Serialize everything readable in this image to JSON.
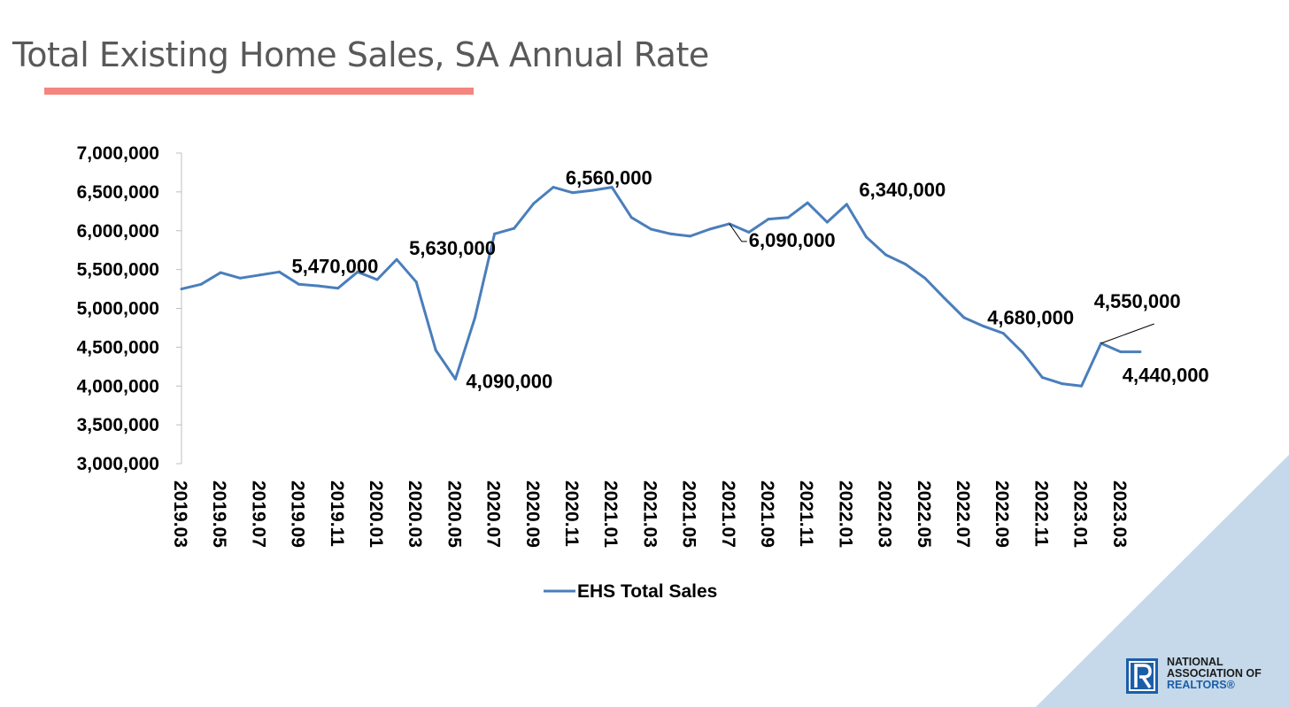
{
  "slide": {
    "title": "Total Existing Home Sales, SA Annual Rate",
    "accent_color": "#f4857f",
    "corner_color": "#c5d9ea"
  },
  "logo": {
    "icon": "realtor-r-icon",
    "line1": "NATIONAL",
    "line2": "ASSOCIATION OF",
    "line3": "REALTORS®",
    "color": "#1b5ea8"
  },
  "chart_data": {
    "type": "line",
    "title": "",
    "xlabel": "",
    "ylabel": "",
    "ylim": [
      3000000,
      7000000
    ],
    "y_ticks": [
      3000000,
      3500000,
      4000000,
      4500000,
      5000000,
      5500000,
      6000000,
      6500000,
      7000000
    ],
    "y_tick_labels": [
      "3,000,000",
      "3,500,000",
      "4,000,000",
      "4,500,000",
      "5,000,000",
      "5,500,000",
      "6,000,000",
      "6,500,000",
      "7,000,000"
    ],
    "x_tick_labels": [
      "2019.03",
      "2019.05",
      "2019.07",
      "2019.09",
      "2019.11",
      "2020.01",
      "2020.03",
      "2020.05",
      "2020.07",
      "2020.09",
      "2020.11",
      "2021.01",
      "2021.03",
      "2021.05",
      "2021.07",
      "2021.09",
      "2021.11",
      "2022.01",
      "2022.03",
      "2022.05",
      "2022.07",
      "2022.09",
      "2022.11",
      "2023.01",
      "2023.03"
    ],
    "categories": [
      "2019.03",
      "2019.04",
      "2019.05",
      "2019.06",
      "2019.07",
      "2019.08",
      "2019.09",
      "2019.10",
      "2019.11",
      "2019.12",
      "2020.01",
      "2020.02",
      "2020.03",
      "2020.04",
      "2020.05",
      "2020.06",
      "2020.07",
      "2020.08",
      "2020.09",
      "2020.10",
      "2020.11",
      "2020.12",
      "2021.01",
      "2021.02",
      "2021.03",
      "2021.04",
      "2021.05",
      "2021.06",
      "2021.07",
      "2021.08",
      "2021.09",
      "2021.10",
      "2021.11",
      "2021.12",
      "2022.01",
      "2022.02",
      "2022.03",
      "2022.04",
      "2022.05",
      "2022.06",
      "2022.07",
      "2022.08",
      "2022.09",
      "2022.10",
      "2022.11",
      "2022.12",
      "2023.01",
      "2023.02",
      "2023.03",
      "2023.04"
    ],
    "series": [
      {
        "name": "EHS Total Sales",
        "color": "#4a7ebb",
        "values": [
          5250000,
          5310000,
          5460000,
          5390000,
          5430000,
          5470000,
          5310000,
          5290000,
          5260000,
          5470000,
          5370000,
          5630000,
          5340000,
          4460000,
          4090000,
          4880000,
          5960000,
          6030000,
          6350000,
          6560000,
          6490000,
          6520000,
          6560000,
          6170000,
          6020000,
          5960000,
          5930000,
          6020000,
          6090000,
          5980000,
          6150000,
          6170000,
          6360000,
          6110000,
          6340000,
          5920000,
          5690000,
          5570000,
          5390000,
          5130000,
          4880000,
          4770000,
          4680000,
          4430000,
          4110000,
          4030000,
          4000000,
          4550000,
          4440000,
          4440000
        ]
      }
    ],
    "legend": {
      "position": "bottom",
      "label": "EHS Total Sales"
    },
    "data_labels": [
      {
        "category": "2019.08",
        "text": "5,470,000"
      },
      {
        "category": "2020.02",
        "text": "5,630,000"
      },
      {
        "category": "2020.05",
        "text": "4,090,000"
      },
      {
        "category": "2020.10",
        "text": "6,560,000"
      },
      {
        "category": "2021.07",
        "text": "6,090,000"
      },
      {
        "category": "2022.01",
        "text": "6,340,000"
      },
      {
        "category": "2022.09",
        "text": "4,680,000"
      },
      {
        "category": "2023.02",
        "text": "4,550,000"
      },
      {
        "category": "2023.03",
        "text": "4,440,000"
      }
    ],
    "grid": false
  }
}
